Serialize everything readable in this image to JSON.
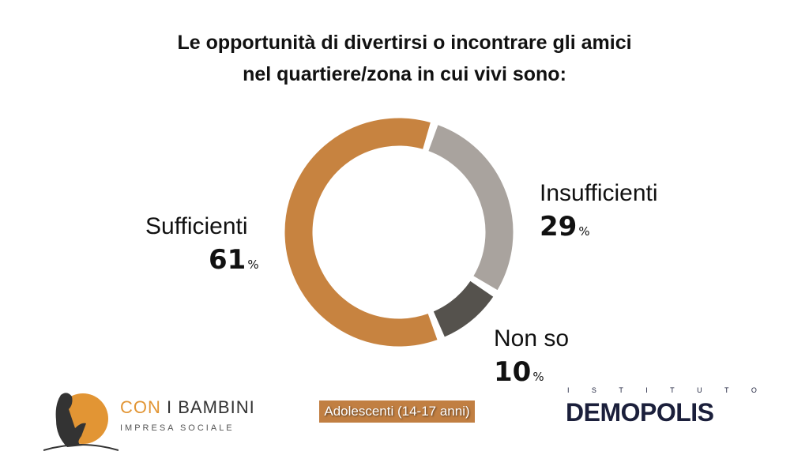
{
  "title_lines": [
    "Le opportunità di divertirsi o incontrare gli amici",
    "nel quartiere/zona in cui vivi sono:"
  ],
  "chart_data": {
    "type": "pie",
    "donut": true,
    "title": "Le opportunità di divertirsi o incontrare gli amici nel quartiere/zona in cui vivi sono:",
    "categories": [
      "Insufficienti",
      "Non so",
      "Sufficienti"
    ],
    "values": [
      29,
      10,
      61
    ],
    "unit": "%",
    "colors": [
      "#a9a39e",
      "#55524d",
      "#c78340"
    ]
  },
  "labels": {
    "insufficienti": {
      "name": "Insufficienti",
      "value": "29",
      "unit": "%"
    },
    "nonso": {
      "name": "Non so",
      "value": "10",
      "unit": "%"
    },
    "sufficienti": {
      "name": "Sufficienti",
      "value": "61",
      "unit": "%"
    }
  },
  "badge": "Adolescenti (14-17 anni)",
  "logos": {
    "left": {
      "con": "CON",
      "rest": " I BAMBINI",
      "sub": "IMPRESA SOCIALE"
    },
    "right": {
      "top": "ISTITUTO",
      "main": "DEMOPOLIS"
    }
  }
}
